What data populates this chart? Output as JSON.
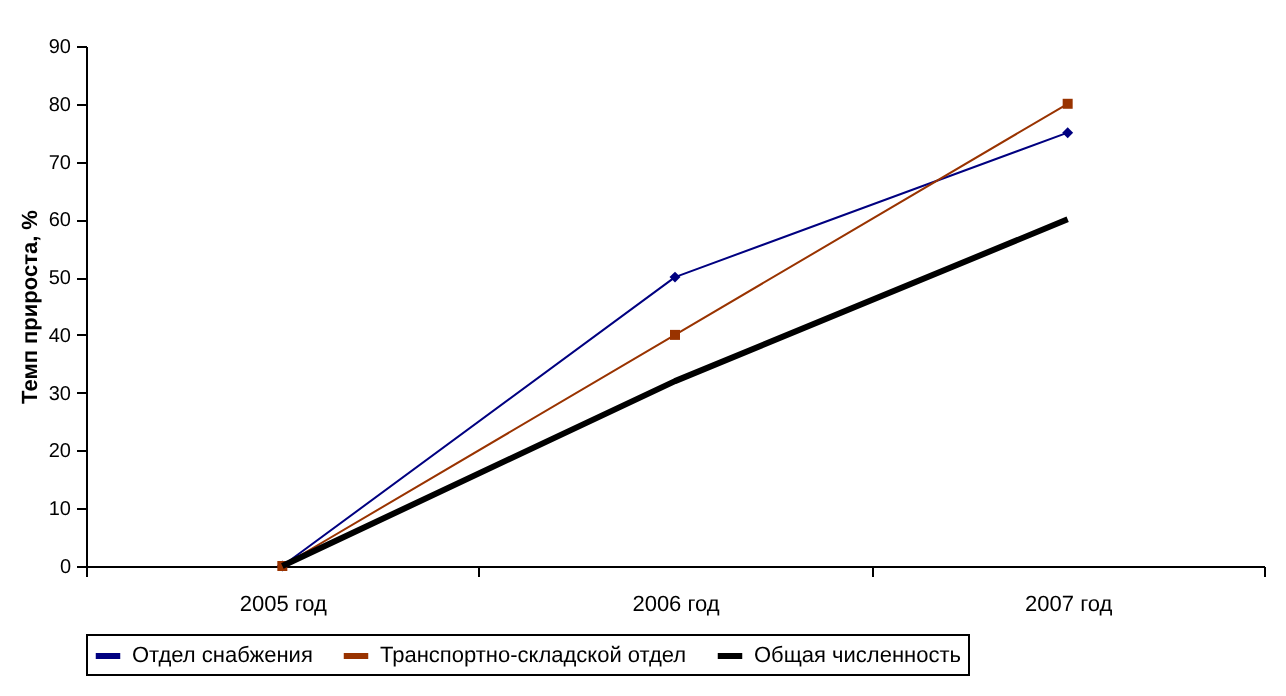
{
  "chart_data": {
    "type": "line",
    "ylabel": "Темп прироста, %",
    "categories": [
      "2005 год",
      "2006 год",
      "2007 год"
    ],
    "series": [
      {
        "name": "Отдел снабжения",
        "color": "#000080",
        "values": [
          0,
          50,
          75
        ],
        "marker": "diamond"
      },
      {
        "name": "Транспортно-складской отдел",
        "color": "#993300",
        "values": [
          0,
          40,
          80
        ],
        "marker": "square"
      },
      {
        "name": "Общая численность",
        "color": "#000000",
        "values": [
          0,
          32,
          60
        ],
        "marker": "none"
      }
    ],
    "ylim": [
      0,
      90
    ],
    "yticks": [
      0,
      10,
      20,
      30,
      40,
      50,
      60,
      70,
      80,
      90
    ],
    "grid": false,
    "legend": "bottom"
  }
}
